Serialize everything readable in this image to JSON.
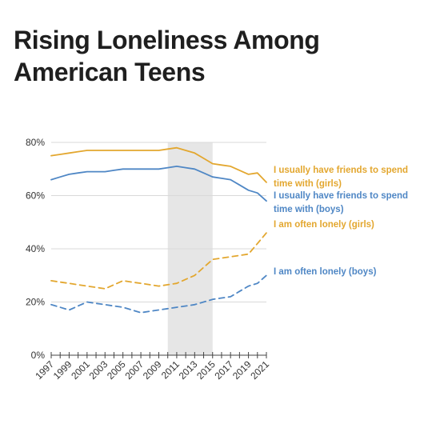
{
  "title_lines": [
    "Rising Loneliness Among",
    "American Teens"
  ],
  "chart_data": {
    "type": "line",
    "title": "Rising Loneliness Among American Teens",
    "x": [
      1997,
      1998,
      1999,
      2000,
      2001,
      2002,
      2003,
      2004,
      2005,
      2006,
      2007,
      2008,
      2009,
      2010,
      2011,
      2012,
      2013,
      2014,
      2015,
      2016,
      2017,
      2018,
      2019,
      2020,
      2021
    ],
    "x_ticks": [
      "1997",
      "1999",
      "2001",
      "2003",
      "2005",
      "2007",
      "2009",
      "2011",
      "2013",
      "2015",
      "2017",
      "2019",
      "2021"
    ],
    "ylim": [
      0,
      80
    ],
    "y_ticks": [
      "0%",
      "20%",
      "40%",
      "60%",
      "80%"
    ],
    "grid": true,
    "shaded_region": [
      2010,
      2015
    ],
    "series": [
      {
        "name": "I usually have friends to spend time with (girls)",
        "label_lines": [
          "I usually have friends to spend",
          "time with (girls)"
        ],
        "color": "#E3A72F",
        "dash": false,
        "values": [
          75,
          75.5,
          76,
          76.5,
          77,
          77,
          77,
          77,
          77,
          77,
          77,
          77,
          77,
          77.5,
          78,
          77,
          76,
          74,
          72,
          71.5,
          71,
          69.5,
          68,
          68.5,
          65
        ]
      },
      {
        "name": "I usually have friends to spend time with (boys)",
        "label_lines": [
          "I usually have friends to spend",
          "time with (boys)"
        ],
        "color": "#4F87C5",
        "dash": false,
        "values": [
          66,
          67,
          68,
          68.5,
          69,
          69,
          69,
          69.5,
          70,
          70,
          70,
          70,
          70,
          70.5,
          71,
          70.5,
          70,
          68.5,
          67,
          66.5,
          66,
          64,
          62,
          61,
          58
        ]
      },
      {
        "name": "I am often lonely (girls)",
        "label_lines": [
          "I am often lonely (girls)"
        ],
        "color": "#E3A72F",
        "dash": true,
        "values": [
          28,
          27.5,
          27,
          26.5,
          26,
          25.5,
          25,
          26.5,
          28,
          27.5,
          27,
          26.5,
          26,
          26.5,
          27,
          28.5,
          30,
          33,
          36,
          36.5,
          37,
          37.5,
          38,
          42,
          46
        ]
      },
      {
        "name": "I am often lonely (boys)",
        "label_lines": [
          "I am often lonely (boys)"
        ],
        "color": "#4F87C5",
        "dash": true,
        "values": [
          19,
          18,
          17,
          18.5,
          20,
          19.5,
          19,
          18.5,
          18,
          17,
          16,
          16.5,
          17,
          17.5,
          18,
          18.5,
          19,
          20,
          21,
          21.5,
          22,
          24,
          26,
          27,
          30
        ]
      }
    ]
  }
}
